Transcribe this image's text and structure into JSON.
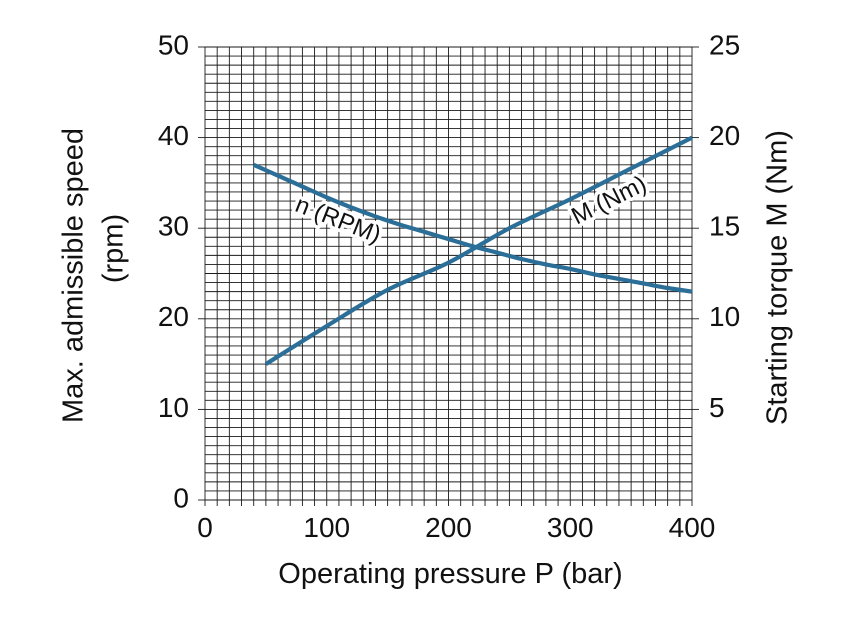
{
  "chart_data": {
    "type": "line",
    "xlabel": "Operating pressure P (bar)",
    "ylabel_left": [
      "Max. admissible speed",
      "(rpm)"
    ],
    "ylabel_right": "Starting torque M (Nm)",
    "xlim": [
      0,
      400
    ],
    "ylim_left": [
      0,
      50
    ],
    "ylim_right": [
      0,
      25
    ],
    "x_ticks": [
      "0",
      "100",
      "200",
      "300",
      "400"
    ],
    "y_left_ticks": [
      "0",
      "10",
      "20",
      "30",
      "40",
      "50"
    ],
    "y_right_ticks": [
      "5",
      "10",
      "15",
      "20",
      "25"
    ],
    "grid": true,
    "grid_x_step": 10,
    "grid_y_step": 1,
    "series": [
      {
        "name": "n (RPM)",
        "axis": "left",
        "color": "#2b6e98",
        "x": [
          40,
          60,
          80,
          100,
          120,
          140,
          160,
          180,
          200,
          220,
          240,
          260,
          280,
          300,
          320,
          340,
          360,
          380,
          400
        ],
        "y": [
          37.0,
          35.8,
          34.6,
          33.4,
          32.3,
          31.3,
          30.4,
          29.6,
          28.8,
          28.0,
          27.3,
          26.6,
          26.0,
          25.5,
          24.9,
          24.4,
          23.9,
          23.4,
          23.0
        ]
      },
      {
        "name": "M (Nm)",
        "axis": "right",
        "color": "#2b6e98",
        "x": [
          50,
          100,
          150,
          200,
          250,
          300,
          350,
          400
        ],
        "y": [
          7.5,
          9.6,
          11.6,
          13.1,
          15.0,
          16.6,
          18.3,
          20.0
        ]
      }
    ]
  }
}
